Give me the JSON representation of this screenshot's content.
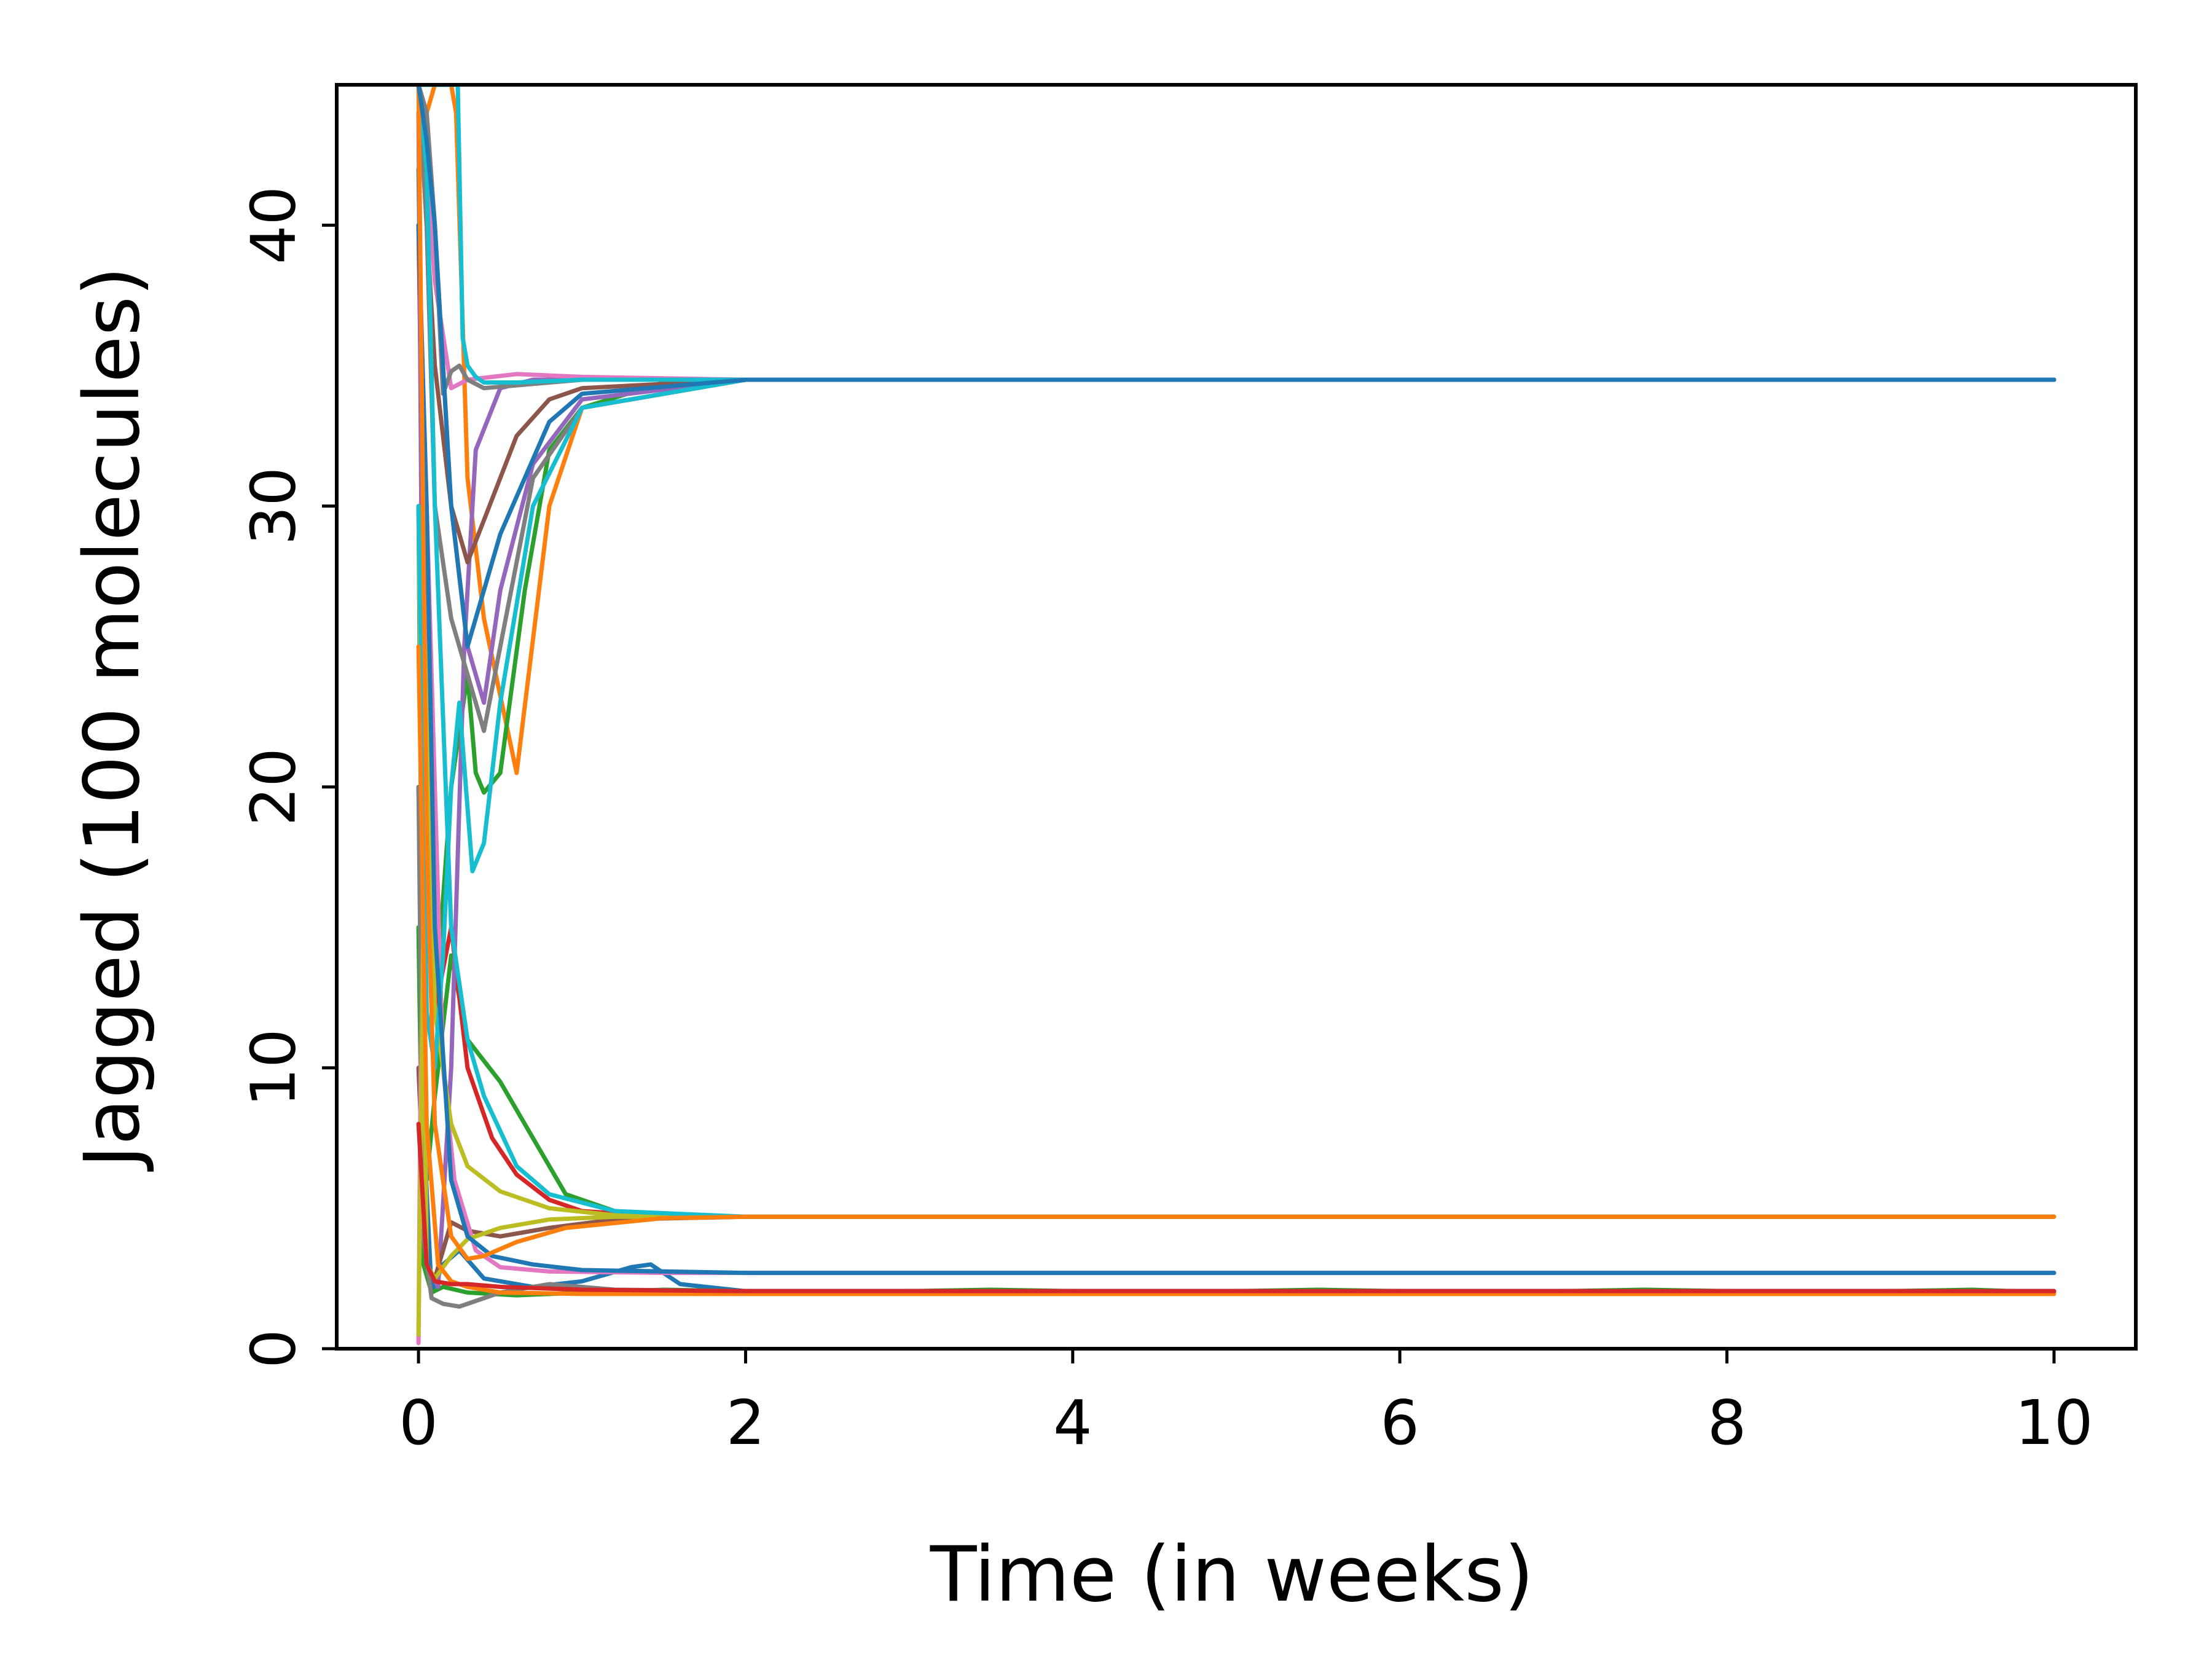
{
  "chart_data": {
    "type": "line",
    "title": "",
    "xlabel": "Time (in weeks)",
    "ylabel": "Jagged (100 molecules)",
    "xlim": [
      -0.5,
      10.5
    ],
    "ylim": [
      0,
      45
    ],
    "xticks": [
      0,
      2,
      4,
      6,
      8,
      10
    ],
    "yticks": [
      0,
      10,
      20,
      30,
      40
    ],
    "grid": false,
    "legend": "none",
    "palette": [
      "#1f77b4",
      "#ff7f0e",
      "#2ca02c",
      "#d62728",
      "#9467bd",
      "#8c564b",
      "#e377c2",
      "#7f7f7f",
      "#bcbd22",
      "#17becf"
    ],
    "series": [
      {
        "color": "#1f77b4",
        "x": [
          0,
          0.03,
          0.08,
          0.15,
          0.25,
          0.4,
          0.7,
          1.0,
          1.3,
          1.42,
          1.6,
          2.0,
          10
        ],
        "y": [
          30,
          8,
          2.0,
          3.0,
          3.5,
          2.5,
          2.2,
          2.4,
          2.9,
          3.0,
          2.3,
          2.05,
          2.05
        ]
      },
      {
        "color": "#ff7f0e",
        "x": [
          0,
          0.05,
          0.1,
          0.2,
          0.23,
          0.3,
          0.4,
          0.6,
          0.8,
          1.0,
          2.0,
          10
        ],
        "y": [
          45,
          44,
          45,
          45,
          44,
          31,
          26,
          20.5,
          30,
          33.5,
          34.5,
          34.5
        ]
      },
      {
        "color": "#2ca02c",
        "x": [
          0,
          0.05,
          0.1,
          0.2,
          0.3,
          0.35,
          0.4,
          0.5,
          0.65,
          0.8,
          1.0,
          1.5,
          2.0,
          10
        ],
        "y": [
          42,
          20,
          12,
          20,
          24,
          20.5,
          19.8,
          20.5,
          27,
          32,
          33.5,
          34.4,
          34.5,
          34.5
        ]
      },
      {
        "color": "#2ca02c",
        "x": [
          0,
          0.05,
          0.1,
          0.2,
          0.3,
          0.5,
          0.7,
          0.9,
          1.2,
          1.6,
          2.0,
          10
        ],
        "y": [
          20,
          6,
          9,
          14,
          11,
          9.5,
          7.5,
          5.5,
          4.9,
          4.7,
          4.7,
          4.7
        ]
      },
      {
        "color": "#2ca02c",
        "x": [
          0,
          0.03,
          0.08,
          0.15,
          0.3,
          0.6,
          1.0,
          1.5,
          2.5,
          3.5,
          4.5,
          5.5,
          6.5,
          7.5,
          8.5,
          9.5,
          10
        ],
        "y": [
          15,
          3,
          2.0,
          2.2,
          2.0,
          1.9,
          2.0,
          2.1,
          2.0,
          2.1,
          2.0,
          2.1,
          2.0,
          2.1,
          2.0,
          2.1,
          2.0
        ]
      },
      {
        "color": "#d62728",
        "x": [
          0,
          0.05,
          0.1,
          0.2,
          0.3,
          0.45,
          0.6,
          0.8,
          1.0,
          1.5,
          2.0,
          10
        ],
        "y": [
          40,
          20,
          12,
          15,
          10,
          7.5,
          6.2,
          5.3,
          4.9,
          4.7,
          4.7,
          4.7
        ]
      },
      {
        "color": "#9467bd",
        "x": [
          0,
          0.05,
          0.12,
          0.2,
          0.28,
          0.35,
          0.5,
          0.7,
          1.0,
          2.0,
          10
        ],
        "y": [
          44,
          3,
          2.2,
          10,
          25,
          32,
          34.2,
          34.5,
          34.5,
          34.5,
          34.5
        ]
      },
      {
        "color": "#9467bd",
        "x": [
          0,
          0.05,
          0.1,
          0.2,
          0.3,
          0.4,
          0.5,
          0.7,
          1.0,
          2.0,
          10
        ],
        "y": [
          45,
          44,
          40,
          30,
          25,
          23,
          27,
          31.5,
          33.8,
          34.5,
          34.5
        ]
      },
      {
        "color": "#8c564b",
        "x": [
          0,
          0.05,
          0.1,
          0.2,
          0.3,
          0.4,
          0.6,
          0.8,
          1.0,
          2.0,
          10
        ],
        "y": [
          45,
          40,
          35,
          30,
          28,
          29.5,
          32.5,
          33.8,
          34.2,
          34.5,
          34.5
        ]
      },
      {
        "color": "#8c564b",
        "x": [
          0,
          0.05,
          0.1,
          0.2,
          0.3,
          0.5,
          0.8,
          1.2,
          2.0,
          10
        ],
        "y": [
          10,
          3,
          2.5,
          4.5,
          4.2,
          4.0,
          4.3,
          4.6,
          4.7,
          4.7
        ]
      },
      {
        "color": "#e377c2",
        "x": [
          0,
          0.02,
          0.05,
          0.1,
          0.15,
          0.22,
          0.35,
          0.5,
          0.8,
          1.5,
          3.0,
          10
        ],
        "y": [
          0.2,
          15,
          30,
          20,
          10,
          6,
          3.5,
          2.9,
          2.75,
          2.7,
          2.7,
          2.7
        ]
      },
      {
        "color": "#e377c2",
        "x": [
          0,
          0.05,
          0.1,
          0.2,
          0.3,
          0.45,
          0.6,
          1.0,
          2.0,
          10
        ],
        "y": [
          45,
          42,
          38,
          34.2,
          34.5,
          34.6,
          34.7,
          34.6,
          34.5,
          34.5
        ]
      },
      {
        "color": "#7f7f7f",
        "x": [
          0,
          0.05,
          0.1,
          0.15,
          0.2,
          0.25,
          0.3,
          0.4,
          0.6,
          1.0,
          2.0,
          10
        ],
        "y": [
          45,
          44,
          40,
          34,
          34.8,
          35.0,
          34.5,
          34.2,
          34.3,
          34.5,
          34.5,
          34.5
        ]
      },
      {
        "color": "#7f7f7f",
        "x": [
          0,
          0.05,
          0.1,
          0.2,
          0.3,
          0.4,
          0.5,
          0.7,
          1.0,
          2.0,
          10
        ],
        "y": [
          45,
          40,
          30,
          26,
          24,
          22,
          25,
          31,
          33.5,
          34.5,
          34.5
        ]
      },
      {
        "color": "#7f7f7f",
        "x": [
          0,
          0.03,
          0.08,
          0.15,
          0.25,
          0.35,
          0.5,
          0.8,
          1.2,
          2.0,
          10
        ],
        "y": [
          20,
          4,
          1.8,
          1.6,
          1.5,
          1.7,
          2.0,
          2.3,
          2.1,
          2.05,
          2.05
        ]
      },
      {
        "color": "#bcbd22",
        "x": [
          0,
          0.05,
          0.1,
          0.2,
          0.3,
          0.5,
          0.8,
          1.2,
          1.6,
          2.0,
          10
        ],
        "y": [
          0.5,
          25,
          12,
          8,
          6.5,
          5.6,
          5.0,
          4.75,
          4.7,
          4.7,
          4.7
        ]
      },
      {
        "color": "#bcbd22",
        "x": [
          0,
          0.05,
          0.1,
          0.2,
          0.3,
          0.5,
          0.8,
          1.2,
          2.0,
          10
        ],
        "y": [
          30,
          3,
          2.5,
          3.3,
          3.9,
          4.3,
          4.6,
          4.7,
          4.7,
          4.7
        ]
      },
      {
        "color": "#17becf",
        "x": [
          0,
          0.1,
          0.2,
          0.24,
          0.27,
          0.3,
          0.35,
          0.4,
          0.6,
          1.0,
          2.0,
          10
        ],
        "y": [
          45,
          45,
          45,
          45,
          36,
          35,
          34.6,
          34.4,
          34.4,
          34.5,
          34.5,
          34.5
        ]
      },
      {
        "color": "#17becf",
        "x": [
          0,
          0.05,
          0.1,
          0.15,
          0.2,
          0.25,
          0.33,
          0.4,
          0.5,
          0.7,
          1.0,
          2.0,
          10
        ],
        "y": [
          30,
          12,
          10,
          14,
          20,
          23,
          17,
          18,
          23,
          30,
          33.5,
          34.5,
          34.5
        ]
      },
      {
        "color": "#17becf",
        "x": [
          0,
          0.05,
          0.1,
          0.2,
          0.3,
          0.4,
          0.6,
          0.8,
          1.2,
          2.0,
          10
        ],
        "y": [
          45,
          42,
          30,
          15,
          11,
          9,
          6.5,
          5.5,
          4.9,
          4.7,
          4.7
        ]
      },
      {
        "color": "#1f77b4",
        "x": [
          0,
          0.05,
          0.1,
          0.2,
          0.3,
          0.45,
          0.7,
          1.0,
          2.0,
          10
        ],
        "y": [
          40,
          30,
          15,
          6,
          4.0,
          3.3,
          3.0,
          2.8,
          2.7,
          2.7
        ]
      },
      {
        "color": "#ff7f0e",
        "x": [
          0,
          0.05,
          0.1,
          0.2,
          0.3,
          0.4,
          0.6,
          0.9,
          1.5,
          2.0,
          10
        ],
        "y": [
          45,
          18,
          8,
          4,
          3.2,
          3.3,
          3.8,
          4.3,
          4.65,
          4.7,
          4.7
        ]
      },
      {
        "color": "#ff7f0e",
        "x": [
          0,
          0.05,
          0.12,
          0.2,
          0.3,
          0.5,
          1.0,
          2.0,
          5.0,
          10
        ],
        "y": [
          25,
          8,
          3,
          2.4,
          2.2,
          2.0,
          1.95,
          1.95,
          1.95,
          1.95
        ]
      },
      {
        "color": "#1f77b4",
        "x": [
          0,
          0.05,
          0.1,
          0.2,
          0.3,
          0.5,
          0.8,
          1.0,
          2.0,
          10
        ],
        "y": [
          45,
          43,
          40,
          30,
          25,
          29,
          33,
          34,
          34.5,
          34.5
        ]
      },
      {
        "color": "#d62728",
        "x": [
          0,
          0.05,
          0.1,
          0.2,
          0.3,
          0.5,
          1.0,
          2.0,
          10
        ],
        "y": [
          8,
          3,
          2.4,
          2.3,
          2.3,
          2.2,
          2.1,
          2.05,
          2.05
        ]
      }
    ]
  }
}
